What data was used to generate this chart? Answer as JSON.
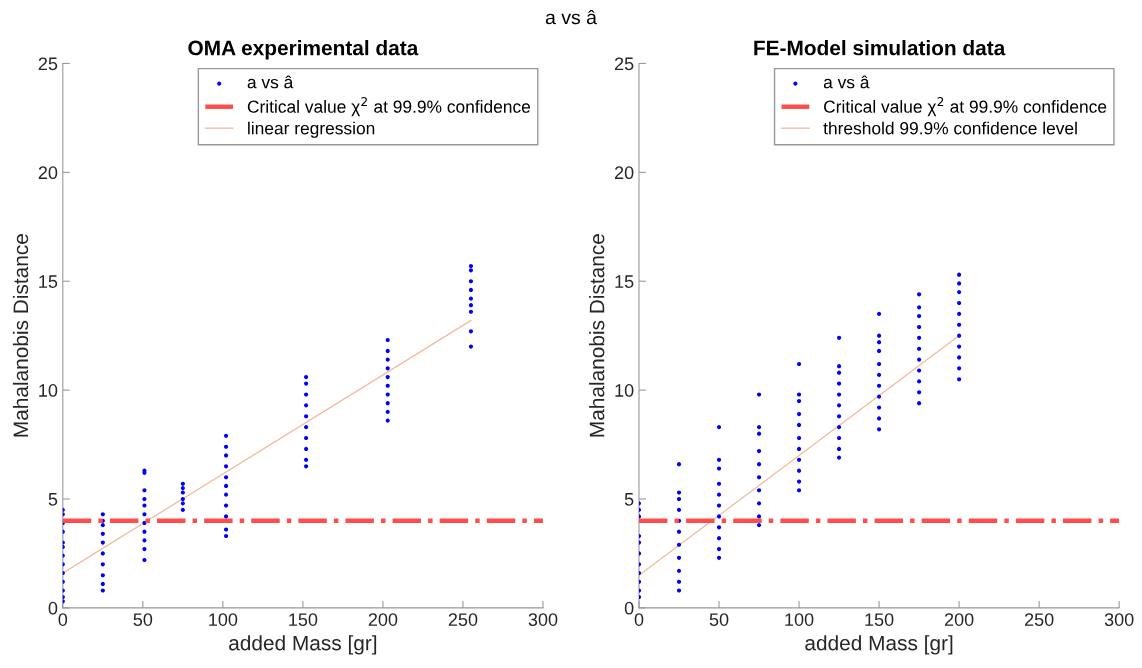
{
  "chart_data": [
    {
      "type": "scatter",
      "title": "OMA experimental data",
      "xlabel": "added Mass [gr]",
      "ylabel": "Mahalanobis Distance",
      "annotations": [
        "a vs â"
      ],
      "xlim": [
        0,
        300
      ],
      "xticks": [
        0,
        50,
        100,
        150,
        200,
        250,
        300
      ],
      "ylim": [
        0,
        25
      ],
      "yticks": [
        0,
        5,
        10,
        15,
        20,
        25
      ],
      "grid": false,
      "legend": "top right",
      "series": [
        {
          "name": "a vs â",
          "color": "#0000ff",
          "marker": "circle",
          "x": [
            0,
            0,
            0,
            0,
            0,
            0,
            0,
            0,
            0,
            0,
            0,
            0,
            0,
            25,
            25,
            25,
            25,
            25,
            25,
            25,
            25,
            25,
            25,
            51,
            51,
            51,
            51,
            51,
            51,
            51,
            51,
            51,
            51,
            51,
            75,
            75,
            75,
            75,
            75,
            75,
            102,
            102,
            102,
            102,
            102,
            102,
            102,
            102,
            102,
            102,
            102,
            152,
            152,
            152,
            152,
            152,
            152,
            152,
            152,
            152,
            152,
            203,
            203,
            203,
            203,
            203,
            203,
            203,
            203,
            203,
            203,
            255,
            255,
            255,
            255,
            255,
            255,
            255,
            255,
            255
          ],
          "values": [
            0.3,
            0.5,
            0.8,
            1.2,
            1.6,
            2.0,
            2.4,
            2.8,
            3.0,
            3.5,
            3.9,
            4.3,
            4.5,
            0.8,
            1.1,
            1.5,
            2.0,
            2.5,
            3.0,
            3.4,
            3.8,
            4.0,
            4.3,
            2.2,
            2.7,
            3.1,
            3.5,
            3.9,
            4.3,
            4.7,
            5.0,
            5.4,
            6.2,
            6.3,
            4.5,
            4.8,
            5.0,
            5.3,
            5.5,
            5.7,
            3.3,
            3.6,
            4.2,
            4.7,
            5.2,
            5.6,
            6.0,
            6.5,
            7.0,
            7.4,
            7.9,
            6.5,
            6.8,
            7.3,
            7.8,
            8.3,
            8.8,
            9.3,
            9.8,
            10.3,
            10.6,
            8.6,
            9.0,
            9.4,
            9.8,
            10.2,
            10.6,
            11.0,
            11.4,
            11.8,
            12.3,
            12.0,
            12.7,
            13.6,
            13.9,
            14.2,
            14.6,
            15.0,
            15.5,
            15.7
          ]
        },
        {
          "name": "linear regression",
          "type": "line",
          "color": "#f4b89a",
          "x": [
            0,
            255
          ],
          "values": [
            1.6,
            13.2
          ]
        }
      ],
      "ref_lines": [
        {
          "axis": "y",
          "value": 4,
          "label": "Critical value χ$^{2}$ at 99.9% confidence",
          "color": "#ff4d4d",
          "line_style": "dashdot"
        }
      ]
    },
    {
      "type": "scatter",
      "title": "FE-Model simulation data",
      "xlabel": "added Mass [gr]",
      "ylabel": "Mahalanobis Distance",
      "xlim": [
        0,
        300
      ],
      "xticks": [
        0,
        50,
        100,
        150,
        200,
        250,
        300
      ],
      "ylim": [
        0,
        25
      ],
      "yticks": [
        0,
        5,
        10,
        15,
        20,
        25
      ],
      "grid": false,
      "legend": "top right",
      "series": [
        {
          "name": "a vs â",
          "color": "#0000ff",
          "marker": "circle",
          "x": [
            0,
            0,
            0,
            0,
            0,
            0,
            0,
            0,
            0,
            0,
            0,
            25,
            25,
            25,
            25,
            25,
            25,
            25,
            25,
            25,
            25,
            25,
            50,
            50,
            50,
            50,
            50,
            50,
            50,
            50,
            50,
            50,
            50,
            75,
            75,
            75,
            75,
            75,
            75,
            75,
            75,
            75,
            75,
            100,
            100,
            100,
            100,
            100,
            100,
            100,
            100,
            100,
            100,
            100,
            125,
            125,
            125,
            125,
            125,
            125,
            125,
            125,
            125,
            125,
            125,
            150,
            150,
            150,
            150,
            150,
            150,
            150,
            150,
            150,
            150,
            150,
            175,
            175,
            175,
            175,
            175,
            175,
            175,
            175,
            175,
            175,
            175,
            200,
            200,
            200,
            200,
            200,
            200,
            200,
            200,
            200,
            200,
            200
          ],
          "values": [
            0.5,
            0.8,
            1.2,
            1.6,
            2.0,
            2.5,
            3.0,
            3.3,
            4.2,
            4.5,
            4.8,
            0.8,
            1.2,
            1.7,
            2.3,
            2.9,
            3.5,
            4.0,
            4.5,
            5.0,
            5.3,
            6.6,
            2.3,
            2.7,
            3.2,
            3.7,
            4.2,
            4.7,
            5.2,
            5.7,
            6.4,
            6.8,
            8.3,
            3.8,
            4.2,
            4.8,
            5.4,
            6.0,
            6.6,
            7.2,
            8.0,
            8.3,
            9.8,
            5.4,
            5.8,
            6.3,
            6.8,
            7.3,
            7.8,
            8.4,
            8.9,
            9.5,
            9.8,
            11.2,
            6.9,
            7.3,
            7.8,
            8.3,
            8.8,
            9.3,
            9.8,
            10.3,
            10.8,
            11.1,
            12.4,
            8.2,
            8.7,
            9.2,
            9.7,
            10.2,
            10.7,
            11.2,
            11.8,
            12.2,
            12.5,
            13.5,
            9.4,
            9.9,
            10.4,
            10.9,
            11.4,
            11.9,
            12.4,
            12.9,
            13.4,
            13.8,
            14.4,
            10.5,
            11.0,
            11.5,
            12.0,
            12.5,
            13.0,
            13.5,
            14.0,
            14.5,
            14.9,
            15.3
          ]
        },
        {
          "name": "threshold 99.9% confidence level",
          "type": "line",
          "color": "#f4b89a",
          "x": [
            0,
            200
          ],
          "values": [
            1.5,
            12.5
          ]
        }
      ],
      "ref_lines": [
        {
          "axis": "y",
          "value": 4,
          "label": "Critical value χ$^{2}$ at 99.9% confidence",
          "color": "#ff4d4d",
          "line_style": "dashdot"
        }
      ]
    }
  ]
}
